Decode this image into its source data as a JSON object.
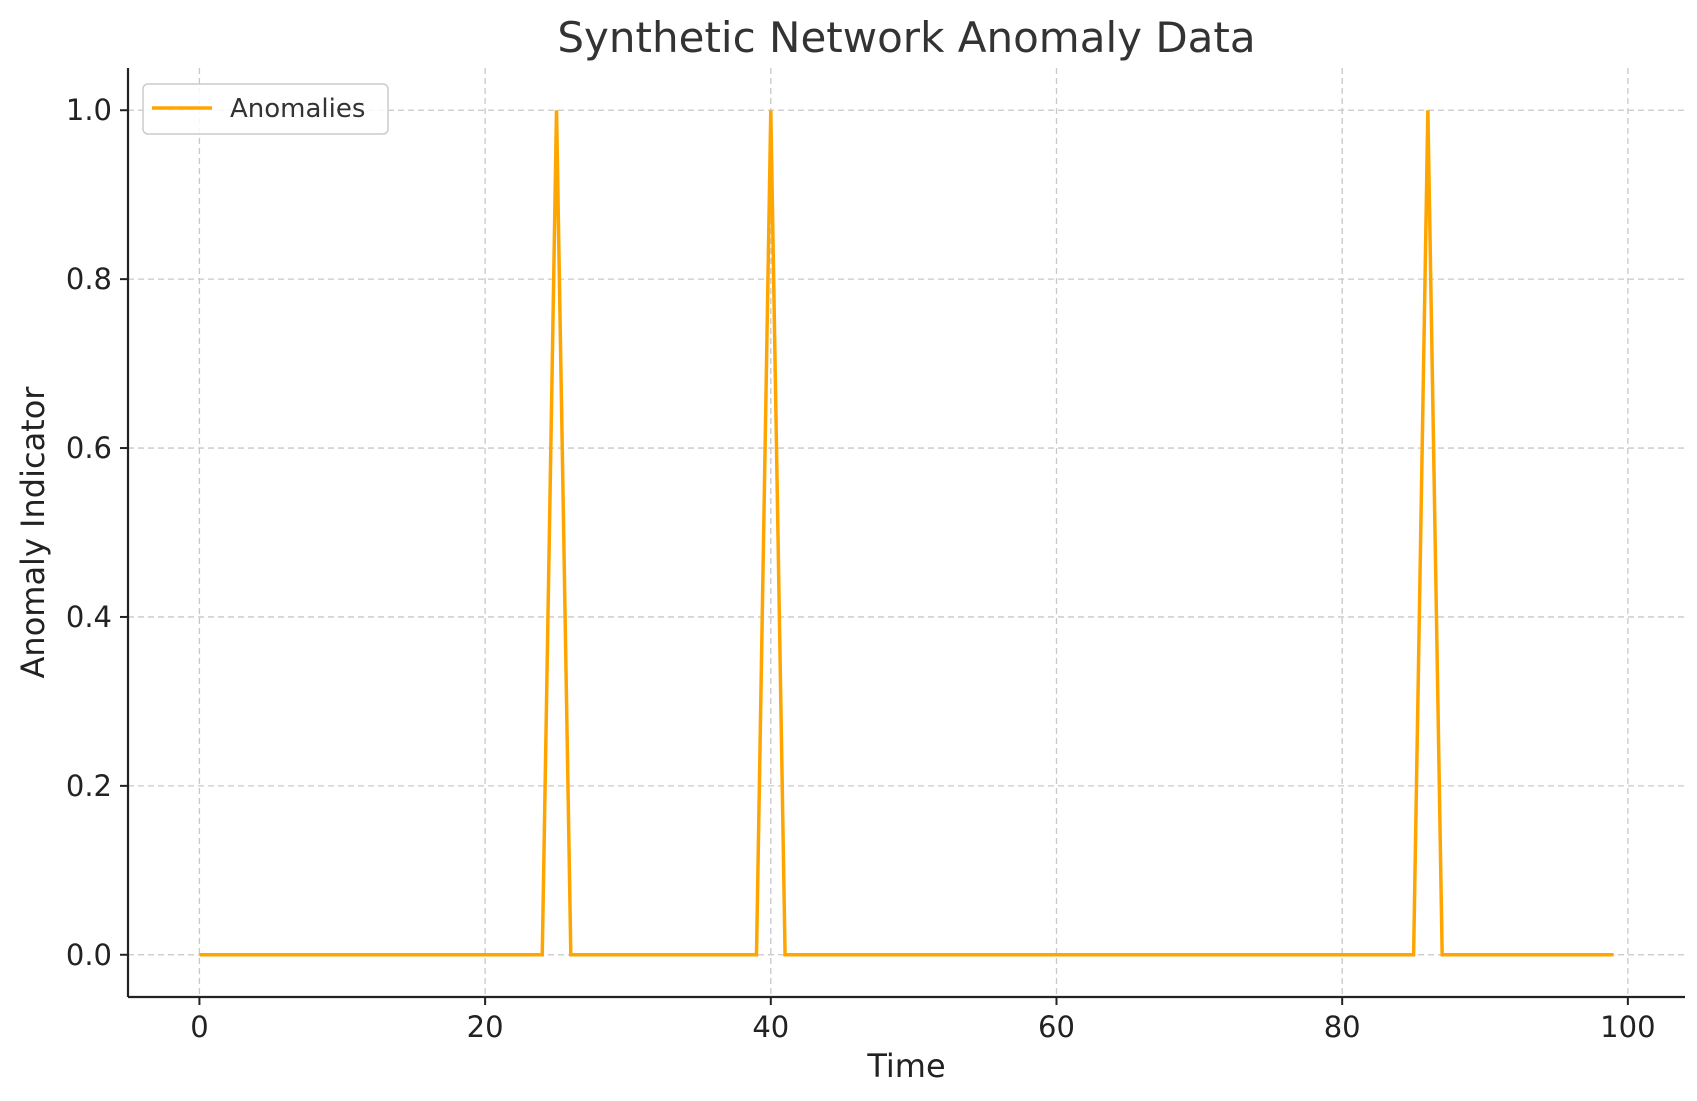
{
  "chart_data": {
    "type": "line",
    "title": "Synthetic Network Anomaly Data",
    "xlabel": "Time",
    "ylabel": "Anomaly Indicator",
    "xlim": [
      -5,
      104
    ],
    "ylim": [
      -0.05,
      1.05
    ],
    "xticks": [
      0,
      20,
      40,
      60,
      80,
      100
    ],
    "yticks": [
      0.0,
      0.2,
      0.4,
      0.6,
      0.8,
      1.0
    ],
    "xtick_labels": [
      "0",
      "20",
      "40",
      "60",
      "80",
      "100"
    ],
    "ytick_labels": [
      "0.0",
      "0.2",
      "0.4",
      "0.6",
      "0.8",
      "1.0"
    ],
    "grid": true,
    "legend": {
      "position": "top-left"
    },
    "x_range": [
      0,
      99
    ],
    "spike_times": [
      25,
      40,
      86
    ],
    "series": [
      {
        "name": "Anomalies",
        "color": "#FFA500"
      }
    ]
  }
}
